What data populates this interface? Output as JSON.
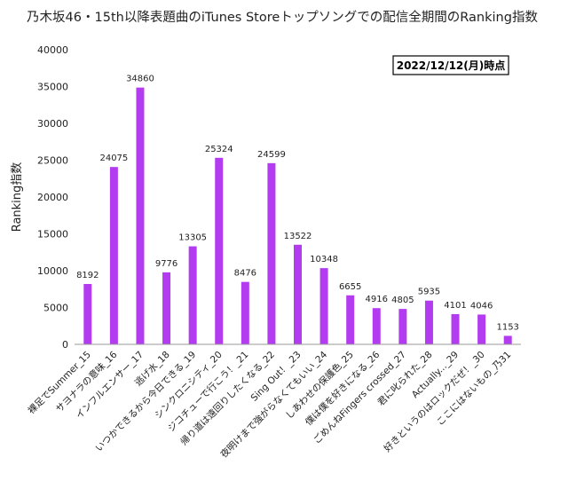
{
  "chart_data": {
    "type": "bar",
    "title": "乃木坂46・15th以降表題曲のiTunes Storeトップソングでの配信全期間のRanking指数",
    "ylabel": "Ranking指数",
    "xlabel": "",
    "annotation": "2022/12/12(月)時点",
    "ylim": [
      0,
      40000
    ],
    "yticks": [
      0,
      5000,
      10000,
      15000,
      20000,
      25000,
      30000,
      35000,
      40000
    ],
    "grid": false,
    "legend": "none",
    "bar_color": "#b43cf0",
    "categories": [
      "裸足でSummer_15",
      "サヨナラの意味_16",
      "インフルエンサー_17",
      "逃げ水_18",
      "いつかできるから今日できる_19",
      "シンクロニシティ_20",
      "ジコチューで行こう！_21",
      "帰り道は遠回りしたくなる_22",
      "Sing Out！_23",
      "夜明けまで強がらなくてもいい_24",
      "しあわせの保護色_25",
      "僕は僕を好きになる_26",
      "ごめんねFingers crossed_27",
      "君に叱られた_28",
      "Actually..._29",
      "好きというのはロックだぜ！_30",
      "ここにはないもの_乃31"
    ],
    "values": [
      8192,
      24075,
      34860,
      9776,
      13305,
      25324,
      8476,
      24599,
      13522,
      10348,
      6655,
      4916,
      4805,
      5935,
      4101,
      4046,
      1153
    ]
  }
}
